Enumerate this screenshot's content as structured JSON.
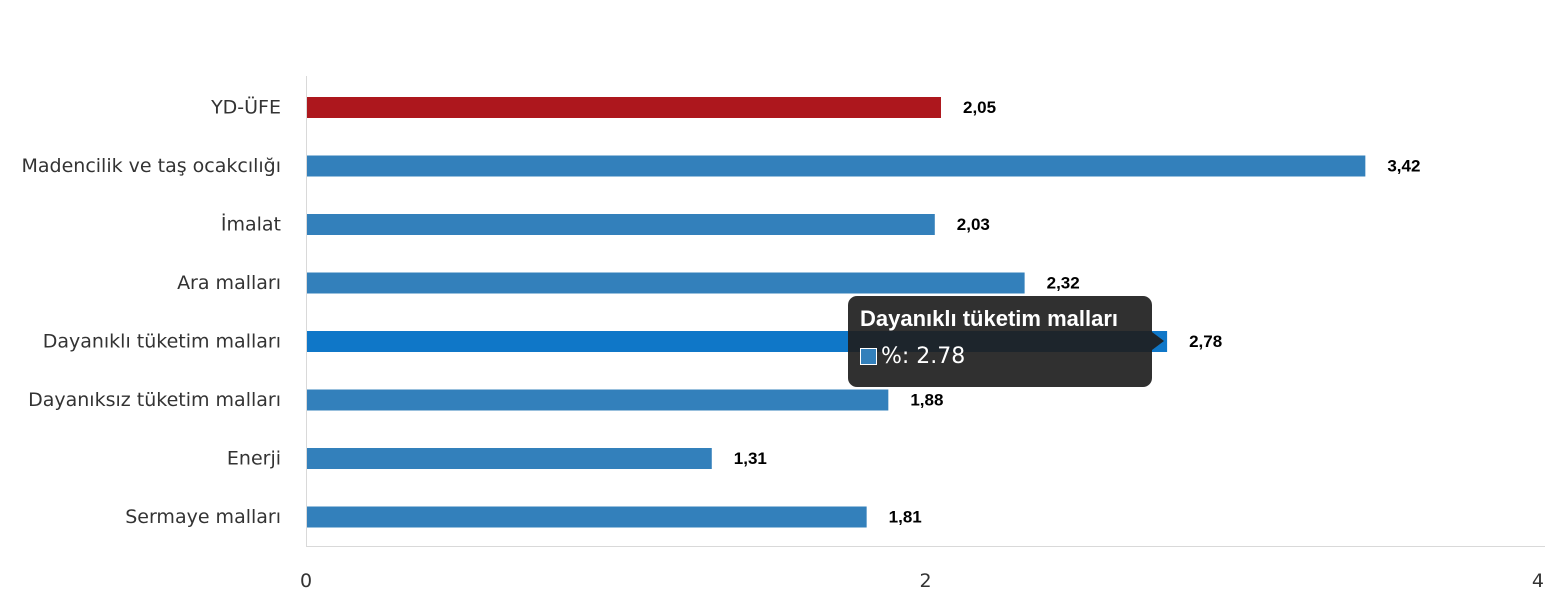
{
  "chart_data": {
    "type": "bar",
    "orientation": "horizontal",
    "categories": [
      "YD-ÜFE",
      "Madencilik ve taş ocakcılığı",
      "İmalat",
      "Ara malları",
      "Dayanıklı tüketim malları",
      "Dayanıksız tüketim malları",
      "Enerji",
      "Sermaye malları"
    ],
    "series": [
      {
        "name": "%",
        "values": [
          2.05,
          3.42,
          2.03,
          2.32,
          2.78,
          1.88,
          1.31,
          1.81
        ],
        "value_labels": [
          "2,05",
          "3,42",
          "2,03",
          "2,32",
          "2,78",
          "1,88",
          "1,31",
          "1,81"
        ]
      }
    ],
    "bar_colors": [
      "#ad171d",
      "#3380bb",
      "#3380bb",
      "#3380bb",
      "#0f77c8",
      "#3380bb",
      "#3380bb",
      "#3380bb"
    ],
    "xlim": [
      0,
      4
    ],
    "x_ticks": [
      "0",
      "2",
      "4"
    ],
    "grid": false,
    "legend": "none"
  },
  "tooltip": {
    "title": "Dayanıklı tüketim malları",
    "series_label": "%",
    "value": "2.78",
    "text": "%: 2.78",
    "swatch_color": "#3380bb"
  }
}
